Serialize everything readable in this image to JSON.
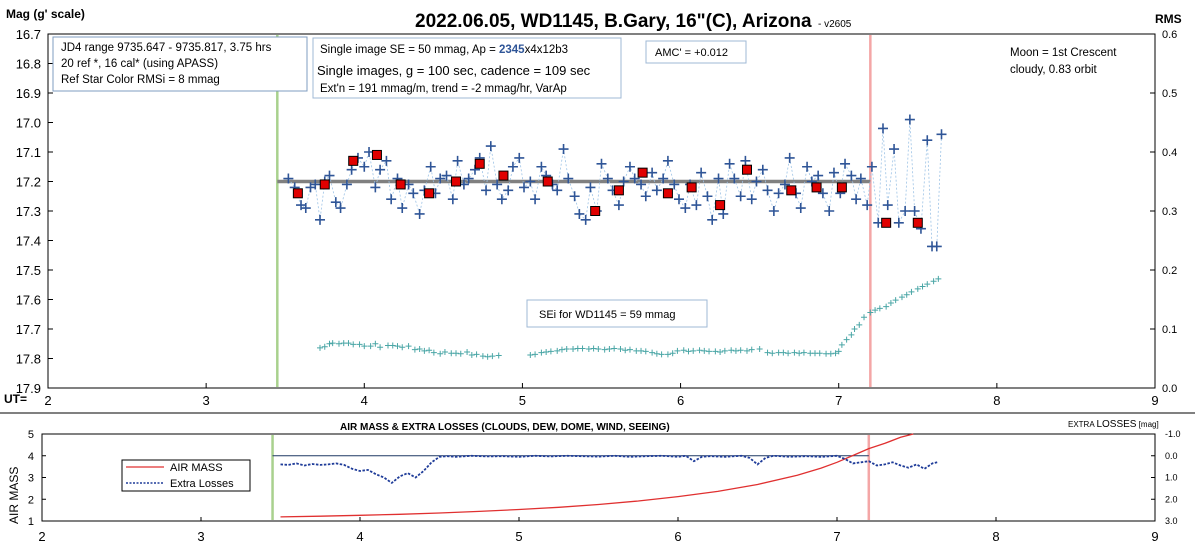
{
  "chart_data": [
    {
      "type": "scatter",
      "title": "2022.06.05, WD1145, B.Gary, 16\"(C), Arizona",
      "title_suffix": "- v2605",
      "ylabel_left": "Mag (g' scale)",
      "ylabel_right": "RMS",
      "xlabel": "UT=",
      "xlim": [
        2,
        9
      ],
      "ylim_left": [
        16.7,
        17.9
      ],
      "ylim_right": [
        0.0,
        0.6
      ],
      "left_inverted": true,
      "grid": false,
      "x_ticks": [
        "2",
        "3",
        "4",
        "5",
        "6",
        "7",
        "8",
        "9"
      ],
      "y_ticks_left": [
        "16.7",
        "16.8",
        "16.9",
        "17.0",
        "17.1",
        "17.2",
        "17.3",
        "17.4",
        "17.5",
        "17.6",
        "17.7",
        "17.8",
        "17.9"
      ],
      "y_ticks_right": [
        "0.6",
        "0.5",
        "0.4",
        "0.3",
        "0.2",
        "0.1",
        "0.0"
      ],
      "vlines": [
        {
          "x": 3.45,
          "color": "#a9d18e"
        },
        {
          "x": 7.2,
          "color": "#f4a6a6"
        }
      ],
      "annotations": {
        "box1": [
          "JD4 range 9735.647 - 9735.817, 3.75 hrs",
          "20 ref *, 16 cal* (using APASS)",
          "Ref Star Color RMSi = 8 mmag"
        ],
        "box2_pre": "Single image SE = 50 mmag, Ap = ",
        "box2_ap": "2345",
        "box2_post": "x4x12b3",
        "box2_line2": "Single images, g = 100 sec, cadence = 109 sec",
        "box2_line3": "Ext'n = 191 mmag/m, trend = -2 mmag/hr, VarAp",
        "amc": "AMC' = +0.012",
        "moon": [
          "Moon = 1st Crescent",
          "cloudy,  0.83 orbit"
        ],
        "sei": "SEi for WD1145 = 59 mmag"
      },
      "model_line": {
        "x": [
          3.45,
          7.2
        ],
        "y": [
          17.2,
          17.2
        ],
        "color": "#808080"
      },
      "series": [
        {
          "marker": "cross",
          "color": "#2f5597",
          "axis": "left",
          "x": [
            3.52,
            3.56,
            3.6,
            3.63,
            3.66,
            3.69,
            3.72,
            3.75,
            3.78,
            3.82,
            3.85,
            3.89,
            3.92,
            3.96,
            4.0,
            4.03,
            4.07,
            4.1,
            4.14,
            4.17,
            4.21,
            4.24,
            4.28,
            4.31,
            4.35,
            4.38,
            4.42,
            4.45,
            4.48,
            4.52,
            4.56,
            4.59,
            4.63,
            4.66,
            4.7,
            4.73,
            4.77,
            4.8,
            4.84,
            4.87,
            4.91,
            4.94,
            4.98,
            5.01,
            5.05,
            5.08,
            5.12,
            5.15,
            5.19,
            5.22,
            5.26,
            5.29,
            5.33,
            5.36,
            5.4,
            5.43,
            5.47,
            5.5,
            5.54,
            5.57,
            5.61,
            5.64,
            5.68,
            5.71,
            5.75,
            5.78,
            5.82,
            5.85,
            5.89,
            5.92,
            5.96,
            5.99,
            6.03,
            6.06,
            6.1,
            6.13,
            6.17,
            6.2,
            6.24,
            6.27,
            6.31,
            6.34,
            6.38,
            6.41,
            6.45,
            6.48,
            6.52,
            6.55,
            6.59,
            6.62,
            6.66,
            6.69,
            6.73,
            6.76,
            6.8,
            6.83,
            6.87,
            6.9,
            6.94,
            6.97,
            7.01,
            7.04,
            7.08,
            7.11,
            7.14,
            7.18,
            7.21,
            7.25,
            7.28,
            7.31,
            7.35,
            7.38,
            7.42,
            7.45,
            7.48,
            7.52,
            7.56,
            7.59,
            7.62,
            7.65
          ],
          "y": [
            17.19,
            17.22,
            17.28,
            17.29,
            17.22,
            17.21,
            17.33,
            17.2,
            17.18,
            17.27,
            17.29,
            17.21,
            17.16,
            17.12,
            17.15,
            17.1,
            17.22,
            17.16,
            17.13,
            17.26,
            17.19,
            17.29,
            17.21,
            17.24,
            17.31,
            17.23,
            17.15,
            17.24,
            17.19,
            17.18,
            17.26,
            17.13,
            17.21,
            17.19,
            17.16,
            17.12,
            17.23,
            17.08,
            17.21,
            17.26,
            17.23,
            17.15,
            17.12,
            17.22,
            17.2,
            17.26,
            17.15,
            17.18,
            17.21,
            17.23,
            17.09,
            17.19,
            17.25,
            17.31,
            17.33,
            17.22,
            17.3,
            17.14,
            17.19,
            17.23,
            17.28,
            17.2,
            17.15,
            17.19,
            17.21,
            17.25,
            17.17,
            17.23,
            17.19,
            17.13,
            17.21,
            17.26,
            17.29,
            17.21,
            17.28,
            17.17,
            17.25,
            17.33,
            17.19,
            17.31,
            17.14,
            17.19,
            17.25,
            17.13,
            17.26,
            17.2,
            17.16,
            17.23,
            17.3,
            17.24,
            17.21,
            17.12,
            17.24,
            17.29,
            17.15,
            17.2,
            17.18,
            17.24,
            17.3,
            17.17,
            17.24,
            17.14,
            17.18,
            17.26,
            17.19,
            17.28,
            17.15,
            17.34,
            17.02,
            17.28,
            17.09,
            17.34,
            17.3,
            16.99,
            17.3,
            17.36,
            17.06,
            17.42,
            17.42,
            17.04
          ]
        },
        {
          "marker": "square",
          "color": "#e00000",
          "axis": "left",
          "x": [
            3.58,
            3.75,
            3.93,
            4.08,
            4.23,
            4.41,
            4.58,
            4.73,
            4.88,
            5.16,
            5.46,
            5.61,
            5.76,
            5.92,
            6.07,
            6.25,
            6.42,
            6.7,
            6.86,
            7.02,
            7.3,
            7.5
          ],
          "y": [
            17.24,
            17.21,
            17.13,
            17.11,
            17.21,
            17.24,
            17.2,
            17.14,
            17.18,
            17.2,
            17.3,
            17.23,
            17.17,
            17.24,
            17.22,
            17.28,
            17.16,
            17.23,
            17.22,
            17.22,
            17.34,
            17.34
          ]
        },
        {
          "marker": "plus_small",
          "color": "#4aa6a6",
          "axis": "right",
          "x": [
            3.72,
            3.75,
            3.78,
            3.8,
            3.84,
            3.87,
            3.9,
            3.93,
            3.97,
            4.0,
            4.04,
            4.07,
            4.1,
            4.15,
            4.18,
            4.21,
            4.24,
            4.28,
            4.32,
            4.35,
            4.38,
            4.41,
            4.44,
            4.48,
            4.51,
            4.55,
            4.58,
            4.61,
            4.65,
            4.68,
            4.71,
            4.75,
            4.78,
            4.81,
            4.85,
            5.05,
            5.08,
            5.12,
            5.15,
            5.18,
            5.22,
            5.25,
            5.28,
            5.32,
            5.35,
            5.38,
            5.42,
            5.45,
            5.48,
            5.52,
            5.55,
            5.58,
            5.62,
            5.65,
            5.68,
            5.72,
            5.75,
            5.78,
            5.82,
            5.85,
            5.88,
            5.92,
            5.95,
            5.98,
            6.02,
            6.05,
            6.08,
            6.12,
            6.15,
            6.18,
            6.22,
            6.25,
            6.28,
            6.32,
            6.35,
            6.38,
            6.42,
            6.45,
            6.5,
            6.55,
            6.58,
            6.62,
            6.65,
            6.68,
            6.72,
            6.75,
            6.78,
            6.82,
            6.85,
            6.88,
            6.92,
            6.95,
            6.98,
            7.0,
            7.02,
            7.05,
            7.08,
            7.1,
            7.13,
            7.16,
            7.2,
            7.23,
            7.26,
            7.3,
            7.33,
            7.36,
            7.4,
            7.43,
            7.46,
            7.5,
            7.53,
            7.56,
            7.6,
            7.63
          ],
          "y": [
            0.068,
            0.07,
            0.075,
            0.076,
            0.075,
            0.076,
            0.076,
            0.074,
            0.074,
            0.071,
            0.071,
            0.075,
            0.069,
            0.072,
            0.072,
            0.071,
            0.069,
            0.071,
            0.065,
            0.066,
            0.063,
            0.064,
            0.06,
            0.058,
            0.061,
            0.059,
            0.059,
            0.058,
            0.061,
            0.056,
            0.057,
            0.054,
            0.053,
            0.054,
            0.055,
            0.056,
            0.057,
            0.06,
            0.061,
            0.062,
            0.063,
            0.065,
            0.066,
            0.066,
            0.067,
            0.067,
            0.066,
            0.067,
            0.066,
            0.065,
            0.066,
            0.067,
            0.066,
            0.064,
            0.065,
            0.063,
            0.063,
            0.062,
            0.06,
            0.058,
            0.057,
            0.057,
            0.059,
            0.063,
            0.064,
            0.062,
            0.063,
            0.064,
            0.063,
            0.062,
            0.062,
            0.061,
            0.063,
            0.064,
            0.063,
            0.064,
            0.063,
            0.065,
            0.066,
            0.06,
            0.059,
            0.06,
            0.06,
            0.059,
            0.06,
            0.059,
            0.06,
            0.059,
            0.059,
            0.059,
            0.058,
            0.058,
            0.059,
            0.062,
            0.073,
            0.082,
            0.09,
            0.1,
            0.107,
            0.12,
            0.128,
            0.132,
            0.135,
            0.138,
            0.144,
            0.149,
            0.154,
            0.158,
            0.163,
            0.168,
            0.172,
            0.176,
            0.181,
            0.185
          ]
        }
      ]
    },
    {
      "type": "line",
      "title": "AIR MASS & EXTRA LOSSES (CLOUDS, DEW, DOME, WIND, SEEING)",
      "ylabel_left": "AIR MASS",
      "ylabel_right_pre": "EXTRA ",
      "ylabel_right_big": "LOSSES",
      "ylabel_right_post": " [mag]",
      "xlim": [
        2,
        9
      ],
      "ylim_left": [
        1,
        5
      ],
      "ylim_right": [
        -1.0,
        3.0
      ],
      "right_inverted": true,
      "x_ticks": [
        "2",
        "3",
        "4",
        "5",
        "6",
        "7",
        "8",
        "9"
      ],
      "y_ticks_left": [
        "5",
        "4",
        "3",
        "2",
        "1"
      ],
      "y_ticks_right": [
        "-1.0",
        "0.0",
        "1.0",
        "2.0",
        "3.0"
      ],
      "legend": [
        "AIR MASS",
        "Extra Losses"
      ],
      "legend_placement": "left",
      "vlines": [
        {
          "x": 3.45,
          "color": "#a9d18e"
        },
        {
          "x": 7.2,
          "color": "#f4a6a6"
        }
      ],
      "hline": {
        "y_left": 4,
        "color": "#1f3864"
      },
      "series": [
        {
          "name": "AIR MASS",
          "color": "#e03030",
          "axis": "left",
          "x": [
            3.5,
            3.75,
            4.0,
            4.25,
            4.5,
            4.75,
            5.0,
            5.25,
            5.5,
            5.75,
            6.0,
            6.25,
            6.5,
            6.75,
            6.9,
            7.0,
            7.1,
            7.2,
            7.3,
            7.4,
            7.48
          ],
          "y": [
            1.19,
            1.22,
            1.26,
            1.31,
            1.37,
            1.44,
            1.53,
            1.63,
            1.76,
            1.92,
            2.12,
            2.36,
            2.68,
            3.1,
            3.43,
            3.7,
            4.01,
            4.33,
            4.57,
            4.85,
            5.05
          ]
        },
        {
          "name": "Extra Losses",
          "color": "#1f3c99",
          "axis": "right",
          "x": [
            3.5,
            3.55,
            3.6,
            3.65,
            3.7,
            3.75,
            3.8,
            3.85,
            3.9,
            3.95,
            4.0,
            4.05,
            4.1,
            4.15,
            4.2,
            4.25,
            4.3,
            4.35,
            4.4,
            4.45,
            4.5,
            4.55,
            4.6,
            4.7,
            4.8,
            4.9,
            5.0,
            5.1,
            5.2,
            5.3,
            5.4,
            5.5,
            5.6,
            5.7,
            5.8,
            5.9,
            6.0,
            6.05,
            6.1,
            6.15,
            6.2,
            6.3,
            6.4,
            6.45,
            6.5,
            6.55,
            6.6,
            6.7,
            6.8,
            6.9,
            7.0,
            7.05,
            7.1,
            7.15,
            7.2,
            7.25,
            7.3,
            7.35,
            7.4,
            7.45,
            7.5,
            7.55,
            7.6,
            7.63
          ],
          "y": [
            0.4,
            0.42,
            0.35,
            0.45,
            0.38,
            0.42,
            0.4,
            0.35,
            0.42,
            0.6,
            0.7,
            0.65,
            0.85,
            1.0,
            1.25,
            0.95,
            0.8,
            1.0,
            0.7,
            0.3,
            0.05,
            0.02,
            0.05,
            0.0,
            0.03,
            0.02,
            0.05,
            0.0,
            0.03,
            0.0,
            0.02,
            0.04,
            0.0,
            0.05,
            0.02,
            0.0,
            0.05,
            0.0,
            0.25,
            0.05,
            0.02,
            0.05,
            0.0,
            0.1,
            0.4,
            0.1,
            0.0,
            0.05,
            0.02,
            0.05,
            0.0,
            0.15,
            0.35,
            0.3,
            0.25,
            0.45,
            0.4,
            0.3,
            0.45,
            0.55,
            0.4,
            0.6,
            0.35,
            0.3
          ]
        }
      ]
    }
  ]
}
